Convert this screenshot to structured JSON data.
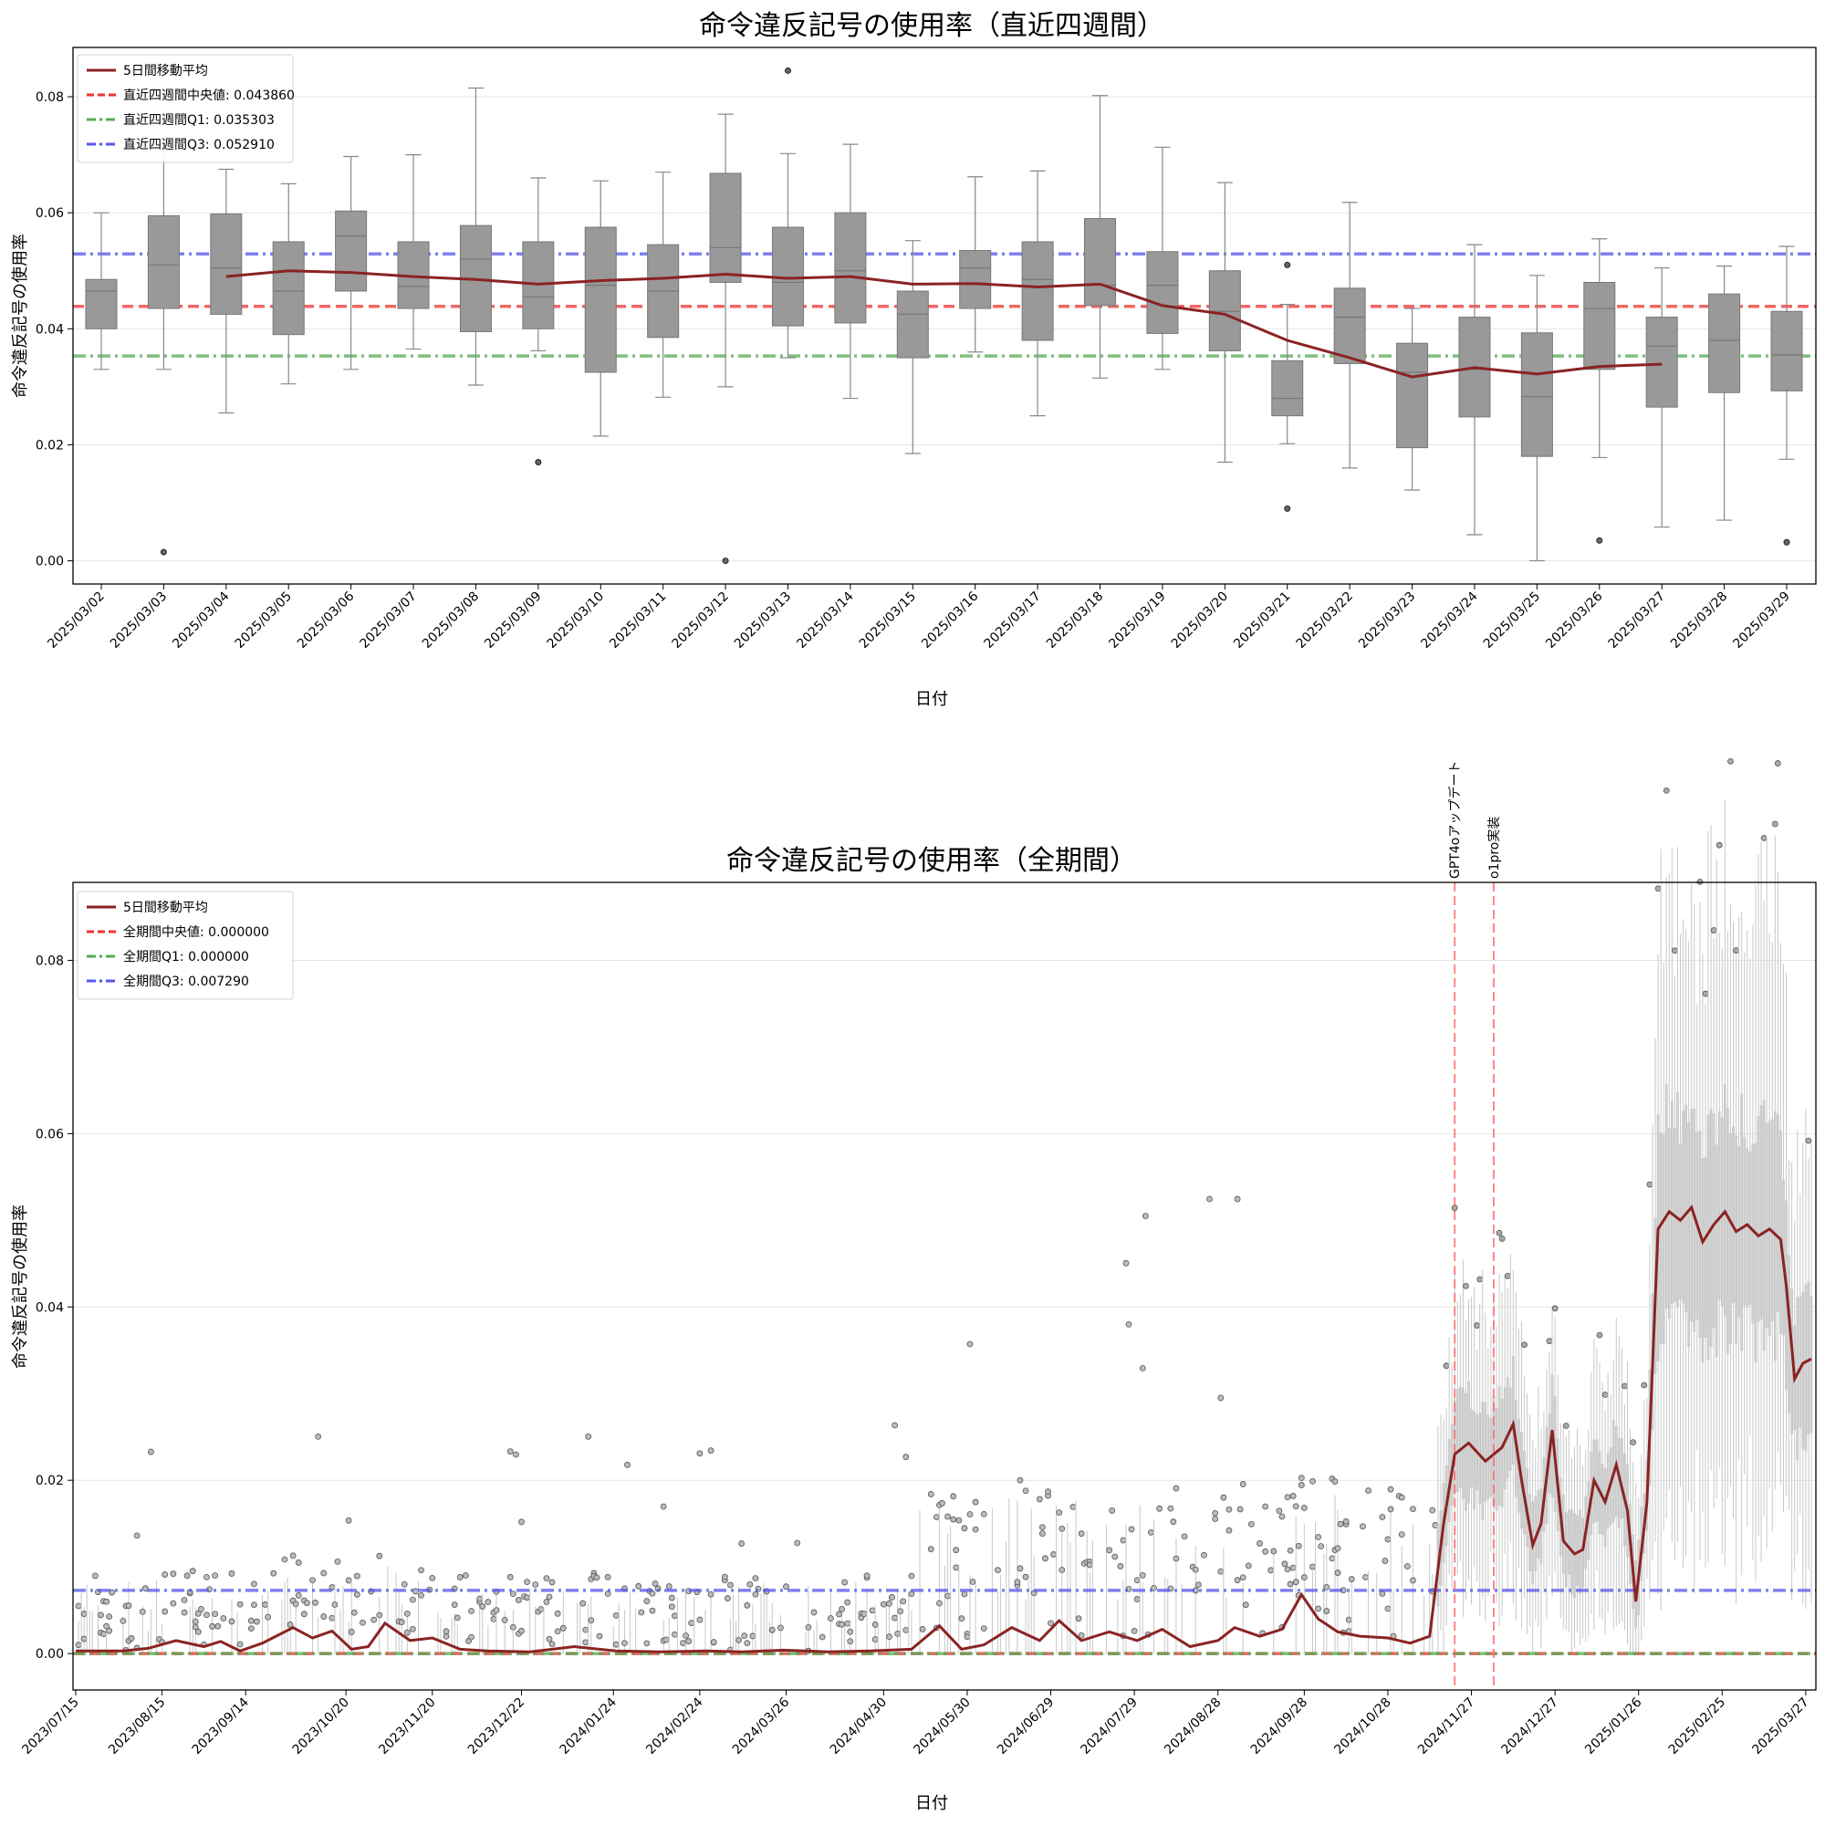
{
  "colors": {
    "moving_average": "#8b2323",
    "median": "#ee3333",
    "q1": "#55aa55",
    "q3": "#5555ee",
    "box_recent": "#999999",
    "box_all": "#c8c8c8",
    "event_line": "#ff6666",
    "grid": "#e5e5e5"
  },
  "chart_data": [
    {
      "type": "box",
      "title": "命令違反記号の使用率（直近四週間）",
      "xlabel": "日付",
      "ylabel": "命令違反記号の使用率",
      "ylim": [
        -0.004,
        0.0885
      ],
      "yticks": [
        "0.00",
        "0.02",
        "0.04",
        "0.06",
        "0.08"
      ],
      "grid": "horizontal",
      "legend_position": "top-left",
      "categories": [
        "2025/03/02",
        "2025/03/03",
        "2025/03/04",
        "2025/03/05",
        "2025/03/06",
        "2025/03/07",
        "2025/03/08",
        "2025/03/09",
        "2025/03/10",
        "2025/03/11",
        "2025/03/12",
        "2025/03/13",
        "2025/03/14",
        "2025/03/15",
        "2025/03/16",
        "2025/03/17",
        "2025/03/18",
        "2025/03/19",
        "2025/03/20",
        "2025/03/21",
        "2025/03/22",
        "2025/03/23",
        "2025/03/24",
        "2025/03/25",
        "2025/03/26",
        "2025/03/27",
        "2025/03/28",
        "2025/03/29"
      ],
      "boxes": [
        {
          "whislo": 0.033,
          "q1": 0.04,
          "med": 0.0465,
          "q3": 0.0485,
          "whishi": 0.06,
          "fliers": []
        },
        {
          "whislo": 0.033,
          "q1": 0.0435,
          "med": 0.051,
          "q3": 0.0595,
          "whishi": 0.073,
          "fliers": [
            0.0015
          ]
        },
        {
          "whislo": 0.0255,
          "q1": 0.0425,
          "med": 0.0505,
          "q3": 0.0598,
          "whishi": 0.0675,
          "fliers": []
        },
        {
          "whislo": 0.0305,
          "q1": 0.039,
          "med": 0.0465,
          "q3": 0.055,
          "whishi": 0.065,
          "fliers": []
        },
        {
          "whislo": 0.033,
          "q1": 0.0465,
          "med": 0.056,
          "q3": 0.0603,
          "whishi": 0.0697,
          "fliers": []
        },
        {
          "whislo": 0.0365,
          "q1": 0.0435,
          "med": 0.0473,
          "q3": 0.055,
          "whishi": 0.07,
          "fliers": []
        },
        {
          "whislo": 0.0303,
          "q1": 0.0395,
          "med": 0.052,
          "q3": 0.0578,
          "whishi": 0.0815,
          "fliers": []
        },
        {
          "whislo": 0.0362,
          "q1": 0.04,
          "med": 0.0455,
          "q3": 0.055,
          "whishi": 0.066,
          "fliers": [
            0.017
          ]
        },
        {
          "whislo": 0.0215,
          "q1": 0.0325,
          "med": 0.0475,
          "q3": 0.0575,
          "whishi": 0.0655,
          "fliers": []
        },
        {
          "whislo": 0.0282,
          "q1": 0.0385,
          "med": 0.0465,
          "q3": 0.0545,
          "whishi": 0.067,
          "fliers": []
        },
        {
          "whislo": 0.03,
          "q1": 0.048,
          "med": 0.054,
          "q3": 0.0668,
          "whishi": 0.077,
          "fliers": [
            0.0
          ]
        },
        {
          "whislo": 0.035,
          "q1": 0.0405,
          "med": 0.048,
          "q3": 0.0575,
          "whishi": 0.0702,
          "fliers": [
            0.0845
          ]
        },
        {
          "whislo": 0.028,
          "q1": 0.041,
          "med": 0.05,
          "q3": 0.06,
          "whishi": 0.0718,
          "fliers": []
        },
        {
          "whislo": 0.0185,
          "q1": 0.035,
          "med": 0.0425,
          "q3": 0.0465,
          "whishi": 0.0552,
          "fliers": []
        },
        {
          "whislo": 0.036,
          "q1": 0.0435,
          "med": 0.0505,
          "q3": 0.0535,
          "whishi": 0.0662,
          "fliers": []
        },
        {
          "whislo": 0.025,
          "q1": 0.038,
          "med": 0.0485,
          "q3": 0.055,
          "whishi": 0.0672,
          "fliers": []
        },
        {
          "whislo": 0.0315,
          "q1": 0.044,
          "med": 0.0475,
          "q3": 0.059,
          "whishi": 0.0802,
          "fliers": []
        },
        {
          "whislo": 0.033,
          "q1": 0.0392,
          "med": 0.0475,
          "q3": 0.0533,
          "whishi": 0.0713,
          "fliers": []
        },
        {
          "whislo": 0.017,
          "q1": 0.0362,
          "med": 0.043,
          "q3": 0.05,
          "whishi": 0.0652,
          "fliers": []
        },
        {
          "whislo": 0.0202,
          "q1": 0.025,
          "med": 0.028,
          "q3": 0.0345,
          "whishi": 0.0442,
          "fliers": [
            0.051,
            0.009
          ]
        },
        {
          "whislo": 0.016,
          "q1": 0.034,
          "med": 0.042,
          "q3": 0.047,
          "whishi": 0.0618,
          "fliers": []
        },
        {
          "whislo": 0.0122,
          "q1": 0.0195,
          "med": 0.0325,
          "q3": 0.0375,
          "whishi": 0.0435,
          "fliers": []
        },
        {
          "whislo": 0.0045,
          "q1": 0.0248,
          "med": 0.033,
          "q3": 0.042,
          "whishi": 0.0545,
          "fliers": []
        },
        {
          "whislo": 0.0,
          "q1": 0.018,
          "med": 0.0283,
          "q3": 0.0393,
          "whishi": 0.0492,
          "fliers": []
        },
        {
          "whislo": 0.0178,
          "q1": 0.033,
          "med": 0.0435,
          "q3": 0.048,
          "whishi": 0.0555,
          "fliers": [
            0.0035
          ]
        },
        {
          "whislo": 0.0058,
          "q1": 0.0265,
          "med": 0.037,
          "q3": 0.042,
          "whishi": 0.0505,
          "fliers": []
        },
        {
          "whislo": 0.007,
          "q1": 0.029,
          "med": 0.038,
          "q3": 0.046,
          "whishi": 0.0508,
          "fliers": []
        },
        {
          "whislo": 0.0175,
          "q1": 0.0293,
          "med": 0.0355,
          "q3": 0.043,
          "whishi": 0.0542,
          "fliers": [
            0.0032
          ]
        }
      ],
      "moving_average": {
        "name": "5日間移動平均",
        "values": [
          null,
          null,
          0.049,
          0.05,
          0.0497,
          0.049,
          0.0485,
          0.0477,
          0.0483,
          0.0487,
          0.0494,
          0.0487,
          0.049,
          0.0477,
          0.0478,
          0.0472,
          0.0477,
          0.044,
          0.0425,
          0.038,
          0.035,
          0.0317,
          0.0333,
          0.0322,
          0.0335,
          0.0339,
          null,
          null
        ]
      },
      "reference_lines": [
        {
          "name": "直近四週間中央値: 0.043860",
          "value": 0.04386,
          "style": "dashed",
          "color_key": "median"
        },
        {
          "name": "直近四週間Q1: 0.035303",
          "value": 0.035303,
          "style": "dashdot",
          "color_key": "q1"
        },
        {
          "name": "直近四週間Q3: 0.052910",
          "value": 0.05291,
          "style": "dashdot",
          "color_key": "q3"
        }
      ]
    },
    {
      "type": "box",
      "title": "命令違反記号の使用率（全期間）",
      "xlabel": "日付",
      "ylabel": "命令違反記号の使用率",
      "ylim": [
        -0.0042,
        0.089
      ],
      "yticks": [
        "0.00",
        "0.02",
        "0.04",
        "0.06",
        "0.08"
      ],
      "grid": "horizontal",
      "legend_position": "top-left",
      "start_date": "2023/07/15",
      "end_date": "2025/03/29",
      "xtick_labels": [
        "2023/07/15",
        "2023/08/15",
        "2023/09/14",
        "2023/10/20",
        "2023/11/20",
        "2023/12/22",
        "2024/01/24",
        "2024/02/24",
        "2024/03/26",
        "2024/04/30",
        "2024/05/30",
        "2024/06/29",
        "2024/07/29",
        "2024/08/28",
        "2024/09/28",
        "2024/10/28",
        "2024/11/27",
        "2024/12/27",
        "2025/01/26",
        "2025/02/25",
        "2025/03/27"
      ],
      "moving_average_points": [
        [
          "2023/07/15",
          0.0003
        ],
        [
          "2023/08/01",
          0.0003
        ],
        [
          "2023/08/10",
          0.0006
        ],
        [
          "2023/08/20",
          0.0015
        ],
        [
          "2023/08/30",
          0.0008
        ],
        [
          "2023/09/05",
          0.0014
        ],
        [
          "2023/09/12",
          0.0003
        ],
        [
          "2023/09/20",
          0.0012
        ],
        [
          "2023/10/01",
          0.003
        ],
        [
          "2023/10/08",
          0.0018
        ],
        [
          "2023/10/15",
          0.0026
        ],
        [
          "2023/10/22",
          0.0005
        ],
        [
          "2023/10/28",
          0.0008
        ],
        [
          "2023/11/03",
          0.0035
        ],
        [
          "2023/11/12",
          0.0015
        ],
        [
          "2023/11/20",
          0.0018
        ],
        [
          "2023/11/30",
          0.0005
        ],
        [
          "2023/12/10",
          0.0003
        ],
        [
          "2023/12/25",
          0.0002
        ],
        [
          "2024/01/10",
          0.0008
        ],
        [
          "2024/01/25",
          0.0003
        ],
        [
          "2024/02/10",
          0.0002
        ],
        [
          "2024/02/26",
          0.0003
        ],
        [
          "2024/03/10",
          0.0002
        ],
        [
          "2024/03/25",
          0.0004
        ],
        [
          "2024/04/10",
          0.0002
        ],
        [
          "2024/04/25",
          0.0003
        ],
        [
          "2024/05/10",
          0.0005
        ],
        [
          "2024/05/20",
          0.0032
        ],
        [
          "2024/05/28",
          0.0005
        ],
        [
          "2024/06/05",
          0.001
        ],
        [
          "2024/06/15",
          0.003
        ],
        [
          "2024/06/25",
          0.0015
        ],
        [
          "2024/07/02",
          0.0038
        ],
        [
          "2024/07/10",
          0.0015
        ],
        [
          "2024/07/20",
          0.0025
        ],
        [
          "2024/07/30",
          0.0015
        ],
        [
          "2024/08/08",
          0.0028
        ],
        [
          "2024/08/18",
          0.0008
        ],
        [
          "2024/08/28",
          0.0015
        ],
        [
          "2024/09/03",
          0.003
        ],
        [
          "2024/09/12",
          0.002
        ],
        [
          "2024/09/20",
          0.0028
        ],
        [
          "2024/09/27",
          0.0068
        ],
        [
          "2024/10/03",
          0.004
        ],
        [
          "2024/10/10",
          0.0025
        ],
        [
          "2024/10/18",
          0.002
        ],
        [
          "2024/10/28",
          0.0018
        ],
        [
          "2024/11/05",
          0.0012
        ],
        [
          "2024/11/12",
          0.002
        ],
        [
          "2024/11/17",
          0.015
        ],
        [
          "2024/11/21",
          0.023
        ],
        [
          "2024/11/26",
          0.0243
        ],
        [
          "2024/12/02",
          0.0222
        ],
        [
          "2024/12/08",
          0.0238
        ],
        [
          "2024/12/12",
          0.0265
        ],
        [
          "2024/12/15",
          0.02
        ],
        [
          "2024/12/19",
          0.0125
        ],
        [
          "2024/12/22",
          0.015
        ],
        [
          "2024/12/26",
          0.0258
        ],
        [
          "2024/12/30",
          0.013
        ],
        [
          "2025/01/03",
          0.0115
        ],
        [
          "2025/01/06",
          0.012
        ],
        [
          "2025/01/10",
          0.02
        ],
        [
          "2025/01/14",
          0.0175
        ],
        [
          "2025/01/18",
          0.0218
        ],
        [
          "2025/01/22",
          0.0165
        ],
        [
          "2025/01/25",
          0.006
        ],
        [
          "2025/01/29",
          0.0175
        ],
        [
          "2025/02/02",
          0.049
        ],
        [
          "2025/02/06",
          0.051
        ],
        [
          "2025/02/10",
          0.05
        ],
        [
          "2025/02/14",
          0.0515
        ],
        [
          "2025/02/18",
          0.0475
        ],
        [
          "2025/02/22",
          0.0495
        ],
        [
          "2025/02/26",
          0.051
        ],
        [
          "2025/03/02",
          0.0487
        ],
        [
          "2025/03/06",
          0.0495
        ],
        [
          "2025/03/10",
          0.0482
        ],
        [
          "2025/03/14",
          0.049
        ],
        [
          "2025/03/18",
          0.0478
        ],
        [
          "2025/03/20",
          0.0425
        ],
        [
          "2025/03/23",
          0.0317
        ],
        [
          "2025/03/26",
          0.0335
        ],
        [
          "2025/03/29",
          0.034
        ]
      ],
      "reference_lines": [
        {
          "name": "全期間中央値: 0.000000",
          "value": 0.0,
          "style": "dashed",
          "color_key": "median"
        },
        {
          "name": "全期間Q1: 0.000000",
          "value": 0.0,
          "style": "dashdot",
          "color_key": "q1"
        },
        {
          "name": "全期間Q3: 0.007290",
          "value": 0.00729,
          "style": "dashdot",
          "color_key": "q3"
        }
      ],
      "events": [
        {
          "date": "2024/11/21",
          "label": "GPT4oアップデート"
        },
        {
          "date": "2024/12/05",
          "label": "o1pro実装"
        }
      ]
    }
  ],
  "moving_average_label": "5日間移動平均"
}
